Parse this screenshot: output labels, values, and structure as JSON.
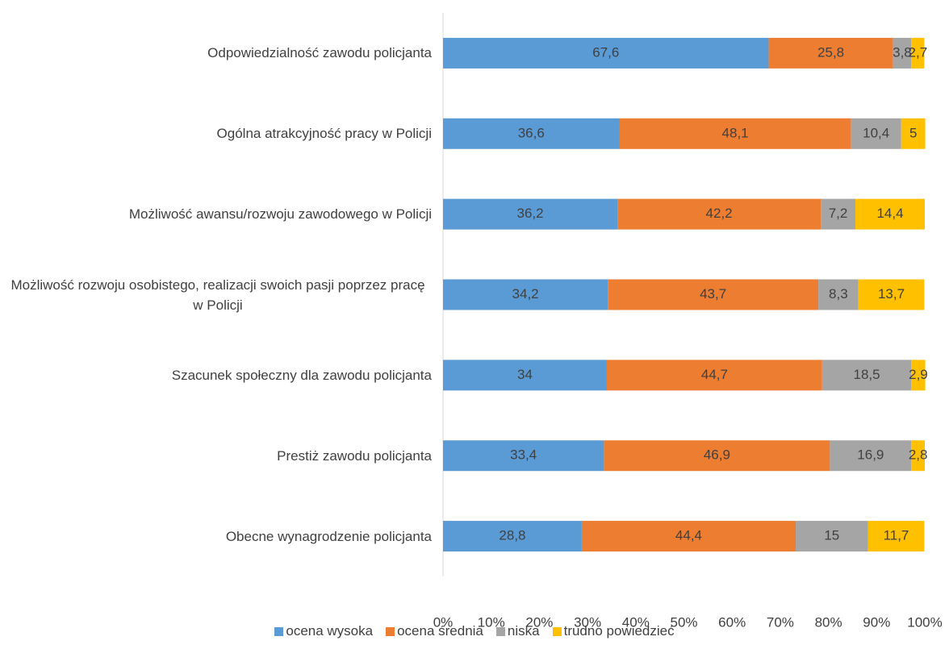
{
  "chart_data": {
    "type": "stacked_bar_horizontal",
    "categories": [
      "Odpowiedzialność zawodu policjanta",
      "Ogólna atrakcyjność pracy w Policji",
      "Możliwość awansu/rozwoju zawodowego w Policji",
      "Możliwość rozwoju osobistego, realizacji swoich pasji poprzez pracę w Policji",
      "Szacunek społeczny dla zawodu policjanta",
      "Prestiż zawodu policjanta",
      "Obecne wynagrodzenie policjanta"
    ],
    "series": [
      {
        "name": "ocena wysoka",
        "color": "#5b9bd5",
        "values": [
          67.6,
          36.6,
          36.2,
          34.2,
          34,
          33.4,
          28.8
        ],
        "value_labels": [
          "67,6",
          "36,6",
          "36,2",
          "34,2",
          "34",
          "33,4",
          "28,8"
        ]
      },
      {
        "name": "ocena średnia",
        "color": "#ed7d31",
        "values": [
          25.8,
          48.1,
          42.2,
          43.7,
          44.7,
          46.9,
          44.4
        ],
        "value_labels": [
          "25,8",
          "48,1",
          "42,2",
          "43,7",
          "44,7",
          "46,9",
          "44,4"
        ]
      },
      {
        "name": "niska",
        "color": "#a5a5a5",
        "values": [
          3.8,
          10.4,
          7.2,
          8.3,
          18.5,
          16.9,
          15
        ],
        "value_labels": [
          "3,8",
          "10,4",
          "7,2",
          "8,3",
          "18,5",
          "16,9",
          "15"
        ]
      },
      {
        "name": "trudno powiedzieć",
        "color": "#ffc000",
        "values": [
          2.7,
          5,
          14.4,
          13.7,
          2.9,
          2.8,
          11.7
        ],
        "value_labels": [
          "2,7",
          "5",
          "14,4",
          "13,7",
          "2,9",
          "2,8",
          "11,7"
        ]
      }
    ],
    "xlim": [
      0,
      100
    ],
    "xticks": [
      {
        "value": 0,
        "label": "0%"
      },
      {
        "value": 10,
        "label": "10%"
      },
      {
        "value": 20,
        "label": "20%"
      },
      {
        "value": 30,
        "label": "30%"
      },
      {
        "value": 40,
        "label": "40%"
      },
      {
        "value": 50,
        "label": "50%"
      },
      {
        "value": 60,
        "label": "60%"
      },
      {
        "value": 70,
        "label": "70%"
      },
      {
        "value": 80,
        "label": "80%"
      },
      {
        "value": 90,
        "label": "90%"
      },
      {
        "value": 100,
        "label": "100%"
      }
    ],
    "grid": false,
    "legend": "bottom"
  }
}
